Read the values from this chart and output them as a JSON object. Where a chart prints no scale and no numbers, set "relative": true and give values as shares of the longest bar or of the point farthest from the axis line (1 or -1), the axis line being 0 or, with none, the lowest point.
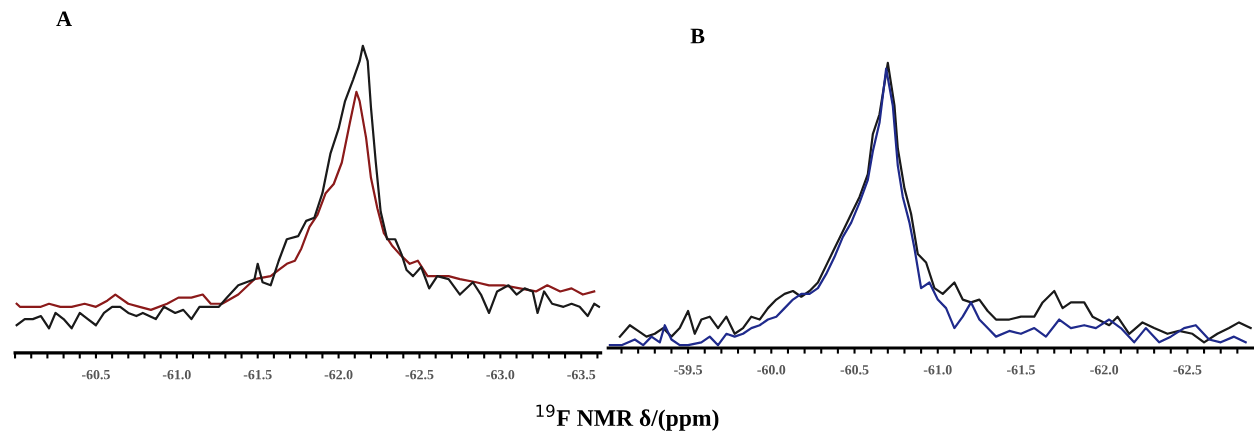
{
  "chart_data": [
    {
      "type": "line",
      "title": "A",
      "relative": true,
      "grid": false,
      "marker": "none",
      "line_style": "solid",
      "xlim": [
        -60.0,
        -63.62
      ],
      "xticks": [
        {
          "value": -60.0,
          "label": null
        },
        {
          "value": -60.1,
          "label": null
        },
        {
          "value": -60.2,
          "label": null
        },
        {
          "value": -60.3,
          "label": null
        },
        {
          "value": -60.4,
          "label": null
        },
        {
          "value": -60.5,
          "label": "-60.5"
        },
        {
          "value": -60.6,
          "label": null
        },
        {
          "value": -60.7,
          "label": null
        },
        {
          "value": -60.8,
          "label": null
        },
        {
          "value": -60.9,
          "label": null
        },
        {
          "value": -61.0,
          "label": "-61.0"
        },
        {
          "value": -61.1,
          "label": null
        },
        {
          "value": -61.2,
          "label": null
        },
        {
          "value": -61.3,
          "label": null
        },
        {
          "value": -61.4,
          "label": null
        },
        {
          "value": -61.5,
          "label": "-61.5"
        },
        {
          "value": -61.6,
          "label": null
        },
        {
          "value": -61.7,
          "label": null
        },
        {
          "value": -61.8,
          "label": null
        },
        {
          "value": -61.9,
          "label": null
        },
        {
          "value": -62.0,
          "label": "-62.0"
        },
        {
          "value": -62.1,
          "label": null
        },
        {
          "value": -62.2,
          "label": null
        },
        {
          "value": -62.3,
          "label": null
        },
        {
          "value": -62.4,
          "label": null
        },
        {
          "value": -62.5,
          "label": "-62.5"
        },
        {
          "value": -62.6,
          "label": null
        },
        {
          "value": -62.7,
          "label": null
        },
        {
          "value": -62.8,
          "label": null
        },
        {
          "value": -62.9,
          "label": null
        },
        {
          "value": -63.0,
          "label": "-63.0"
        },
        {
          "value": -63.1,
          "label": null
        },
        {
          "value": -63.2,
          "label": null
        },
        {
          "value": -63.3,
          "label": null
        },
        {
          "value": -63.4,
          "label": null
        },
        {
          "value": -63.5,
          "label": "-63.5"
        },
        {
          "value": -63.6,
          "label": null
        }
      ],
      "series": [
        {
          "color": "#8b1a1a",
          "x": [
            -60.01,
            -60.03,
            -60.08,
            -60.16,
            -60.21,
            -60.28,
            -60.35,
            -60.43,
            -60.5,
            -60.57,
            -60.62,
            -60.7,
            -60.77,
            -60.84,
            -60.94,
            -61.01,
            -61.09,
            -61.16,
            -61.21,
            -61.28,
            -61.38,
            -61.48,
            -61.58,
            -61.63,
            -61.68,
            -61.73,
            -61.77,
            -61.82,
            -61.87,
            -61.92,
            -61.97,
            -62.02,
            -62.07,
            -62.11,
            -62.13,
            -62.17,
            -62.2,
            -62.24,
            -62.28,
            -62.33,
            -62.38,
            -62.44,
            -62.49,
            -62.55,
            -62.61,
            -62.68,
            -62.75,
            -62.85,
            -62.93,
            -63.02,
            -63.12,
            -63.22,
            -63.29,
            -63.37,
            -63.44,
            -63.51,
            -63.58
          ],
          "values": [
            0.16,
            0.15,
            0.15,
            0.15,
            0.16,
            0.15,
            0.15,
            0.16,
            0.15,
            0.17,
            0.19,
            0.16,
            0.15,
            0.14,
            0.16,
            0.18,
            0.18,
            0.19,
            0.16,
            0.16,
            0.19,
            0.24,
            0.25,
            0.27,
            0.29,
            0.3,
            0.34,
            0.41,
            0.45,
            0.52,
            0.55,
            0.62,
            0.75,
            0.85,
            0.82,
            0.7,
            0.57,
            0.47,
            0.39,
            0.35,
            0.32,
            0.29,
            0.3,
            0.25,
            0.25,
            0.25,
            0.24,
            0.23,
            0.22,
            0.22,
            0.21,
            0.2,
            0.22,
            0.2,
            0.21,
            0.19,
            0.2
          ]
        },
        {
          "color": "#1a1a1a",
          "x": [
            -60.01,
            -60.06,
            -60.11,
            -60.16,
            -60.21,
            -60.25,
            -60.3,
            -60.35,
            -60.4,
            -60.45,
            -60.5,
            -60.55,
            -60.6,
            -60.65,
            -60.7,
            -60.75,
            -60.79,
            -60.87,
            -60.92,
            -60.99,
            -61.04,
            -61.09,
            -61.14,
            -61.19,
            -61.26,
            -61.31,
            -61.38,
            -61.43,
            -61.48,
            -61.5,
            -61.53,
            -61.58,
            -61.63,
            -61.68,
            -61.75,
            -61.8,
            -61.85,
            -61.9,
            -61.95,
            -62.0,
            -62.04,
            -62.09,
            -62.13,
            -62.15,
            -62.18,
            -62.2,
            -62.23,
            -62.26,
            -62.3,
            -62.35,
            -62.39,
            -62.42,
            -62.46,
            -62.51,
            -62.56,
            -62.61,
            -62.68,
            -62.75,
            -62.83,
            -62.88,
            -62.93,
            -62.98,
            -63.05,
            -63.1,
            -63.15,
            -63.2,
            -63.23,
            -63.27,
            -63.32,
            -63.39,
            -63.44,
            -63.49,
            -63.54,
            -63.58,
            -63.61
          ],
          "values": [
            0.09,
            0.11,
            0.11,
            0.12,
            0.08,
            0.13,
            0.11,
            0.08,
            0.13,
            0.11,
            0.09,
            0.13,
            0.15,
            0.15,
            0.13,
            0.12,
            0.13,
            0.11,
            0.15,
            0.13,
            0.14,
            0.11,
            0.15,
            0.15,
            0.15,
            0.18,
            0.22,
            0.23,
            0.24,
            0.29,
            0.23,
            0.22,
            0.3,
            0.37,
            0.38,
            0.43,
            0.44,
            0.52,
            0.65,
            0.73,
            0.82,
            0.89,
            0.95,
            1.0,
            0.95,
            0.8,
            0.62,
            0.46,
            0.37,
            0.37,
            0.32,
            0.27,
            0.25,
            0.28,
            0.21,
            0.25,
            0.24,
            0.19,
            0.23,
            0.19,
            0.13,
            0.2,
            0.22,
            0.19,
            0.21,
            0.2,
            0.13,
            0.2,
            0.16,
            0.15,
            0.16,
            0.15,
            0.12,
            0.16,
            0.15
          ]
        }
      ]
    },
    {
      "type": "line",
      "title": "B",
      "xlabel": "$^{19}$F NMR δ/(ppm)",
      "relative": true,
      "grid": false,
      "marker": "none",
      "line_style": "solid",
      "xlim": [
        -59.02,
        -62.9
      ],
      "xticks": [
        {
          "value": -59.1,
          "label": null
        },
        {
          "value": -59.2,
          "label": null
        },
        {
          "value": -59.3,
          "label": null
        },
        {
          "value": -59.4,
          "label": null
        },
        {
          "value": -59.5,
          "label": "-59.5"
        },
        {
          "value": -59.6,
          "label": null
        },
        {
          "value": -59.7,
          "label": null
        },
        {
          "value": -59.8,
          "label": null
        },
        {
          "value": -59.9,
          "label": null
        },
        {
          "value": -60.0,
          "label": "-60.0"
        },
        {
          "value": -60.1,
          "label": null
        },
        {
          "value": -60.2,
          "label": null
        },
        {
          "value": -60.3,
          "label": null
        },
        {
          "value": -60.4,
          "label": null
        },
        {
          "value": -60.5,
          "label": "-60.5"
        },
        {
          "value": -60.6,
          "label": null
        },
        {
          "value": -60.7,
          "label": null
        },
        {
          "value": -60.8,
          "label": null
        },
        {
          "value": -60.9,
          "label": null
        },
        {
          "value": -61.0,
          "label": "-61.0"
        },
        {
          "value": -61.1,
          "label": null
        },
        {
          "value": -61.2,
          "label": null
        },
        {
          "value": -61.3,
          "label": null
        },
        {
          "value": -61.4,
          "label": null
        },
        {
          "value": -61.5,
          "label": "-61.5"
        },
        {
          "value": -61.6,
          "label": null
        },
        {
          "value": -61.7,
          "label": null
        },
        {
          "value": -61.8,
          "label": null
        },
        {
          "value": -61.9,
          "label": null
        },
        {
          "value": -62.0,
          "label": "-62.0"
        },
        {
          "value": -62.1,
          "label": null
        },
        {
          "value": -62.2,
          "label": null
        },
        {
          "value": -62.3,
          "label": null
        },
        {
          "value": -62.4,
          "label": null
        },
        {
          "value": -62.5,
          "label": "-62.5"
        },
        {
          "value": -62.6,
          "label": null
        },
        {
          "value": -62.7,
          "label": null
        },
        {
          "value": -62.8,
          "label": null
        }
      ],
      "series": [
        {
          "color": "#1a1a1a",
          "x": [
            -59.09,
            -59.15,
            -59.2,
            -59.25,
            -59.3,
            -59.35,
            -59.4,
            -59.45,
            -59.5,
            -59.54,
            -59.58,
            -59.63,
            -59.68,
            -59.73,
            -59.78,
            -59.83,
            -59.88,
            -59.93,
            -59.98,
            -60.03,
            -60.08,
            -60.13,
            -60.18,
            -60.23,
            -60.28,
            -60.33,
            -60.38,
            -60.43,
            -60.48,
            -60.53,
            -60.58,
            -60.61,
            -60.65,
            -60.7,
            -60.74,
            -60.76,
            -60.8,
            -60.84,
            -60.88,
            -60.93,
            -60.98,
            -61.03,
            -61.1,
            -61.15,
            -61.2,
            -61.25,
            -61.3,
            -61.35,
            -61.43,
            -61.5,
            -61.58,
            -61.63,
            -61.7,
            -61.75,
            -61.8,
            -61.88,
            -61.93,
            -62.03,
            -62.08,
            -62.15,
            -62.23,
            -62.3,
            -62.38,
            -62.45,
            -62.53,
            -62.6,
            -62.68,
            -62.75,
            -62.81,
            -62.88
          ],
          "values": [
            0.04,
            0.08,
            0.06,
            0.04,
            0.05,
            0.07,
            0.04,
            0.07,
            0.13,
            0.05,
            0.1,
            0.11,
            0.07,
            0.11,
            0.05,
            0.07,
            0.11,
            0.1,
            0.14,
            0.17,
            0.19,
            0.2,
            0.18,
            0.2,
            0.23,
            0.29,
            0.35,
            0.41,
            0.47,
            0.53,
            0.61,
            0.75,
            0.82,
            1.0,
            0.85,
            0.7,
            0.56,
            0.47,
            0.33,
            0.3,
            0.21,
            0.19,
            0.23,
            0.17,
            0.16,
            0.17,
            0.13,
            0.1,
            0.1,
            0.11,
            0.11,
            0.16,
            0.2,
            0.14,
            0.16,
            0.16,
            0.11,
            0.08,
            0.11,
            0.05,
            0.09,
            0.07,
            0.05,
            0.06,
            0.05,
            0.02,
            0.05,
            0.07,
            0.09,
            0.07
          ]
        },
        {
          "color": "#1f2a8c",
          "x": [
            -59.03,
            -59.1,
            -59.18,
            -59.23,
            -59.28,
            -59.33,
            -59.36,
            -59.4,
            -59.45,
            -59.5,
            -59.58,
            -59.63,
            -59.68,
            -59.73,
            -59.78,
            -59.83,
            -59.88,
            -59.93,
            -59.98,
            -60.03,
            -60.08,
            -60.13,
            -60.18,
            -60.23,
            -60.28,
            -60.33,
            -60.38,
            -60.43,
            -60.48,
            -60.53,
            -60.58,
            -60.61,
            -60.65,
            -60.69,
            -60.73,
            -60.76,
            -60.79,
            -60.83,
            -60.86,
            -60.9,
            -60.95,
            -61.0,
            -61.05,
            -61.1,
            -61.15,
            -61.2,
            -61.25,
            -61.3,
            -61.35,
            -61.43,
            -61.5,
            -61.58,
            -61.65,
            -61.73,
            -61.8,
            -61.88,
            -61.95,
            -62.03,
            -62.1,
            -62.18,
            -62.25,
            -62.33,
            -62.4,
            -62.48,
            -62.55,
            -62.63,
            -62.7,
            -62.78,
            -62.85
          ],
          "values": [
            0.01,
            0.01,
            0.03,
            0.01,
            0.04,
            0.02,
            0.08,
            0.03,
            0.01,
            0.01,
            0.02,
            0.04,
            0.01,
            0.05,
            0.04,
            0.05,
            0.07,
            0.08,
            0.1,
            0.11,
            0.14,
            0.17,
            0.19,
            0.19,
            0.21,
            0.26,
            0.32,
            0.39,
            0.44,
            0.51,
            0.59,
            0.69,
            0.79,
            0.98,
            0.85,
            0.64,
            0.53,
            0.44,
            0.35,
            0.21,
            0.23,
            0.17,
            0.14,
            0.07,
            0.11,
            0.16,
            0.1,
            0.07,
            0.04,
            0.06,
            0.05,
            0.07,
            0.04,
            0.1,
            0.07,
            0.08,
            0.07,
            0.1,
            0.07,
            0.02,
            0.07,
            0.02,
            0.04,
            0.07,
            0.08,
            0.03,
            0.02,
            0.04,
            0.02
          ]
        }
      ]
    }
  ]
}
